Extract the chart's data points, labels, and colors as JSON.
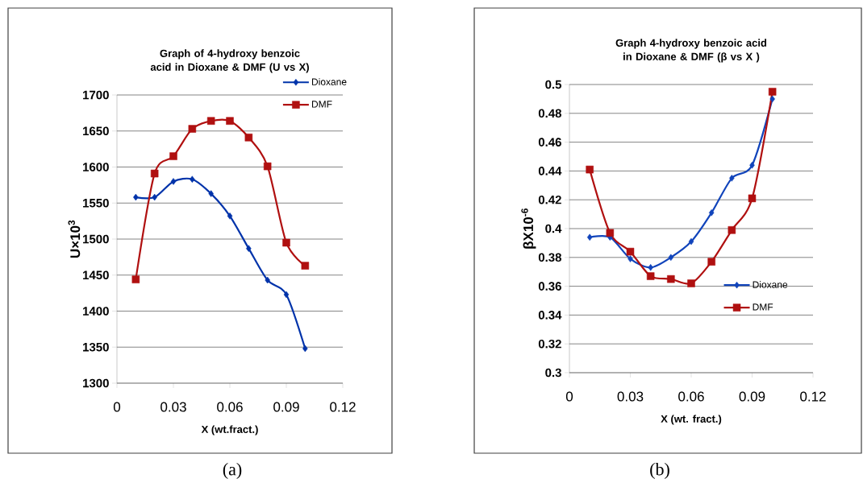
{
  "chart_data": [
    {
      "type": "line",
      "title": "Graph of 4-hydroxy benzoic acid in Dioxane & DMF (U vs X)",
      "xlabel": "X (wt.fract.)",
      "ylabel": "U×10$^{3}$",
      "x": [
        0.01,
        0.02,
        0.03,
        0.04,
        0.05,
        0.06,
        0.07,
        0.08,
        0.09,
        0.1
      ],
      "series": [
        {
          "name": "Dioxane",
          "color": "#0033aa",
          "marker": "diamond",
          "values": [
            1558,
            1558,
            1580,
            1583,
            1563,
            1532,
            1487,
            1443,
            1423,
            1348
          ]
        },
        {
          "name": "DMF",
          "color": "#b01010",
          "marker": "square",
          "values": [
            1444,
            1591,
            1615,
            1653,
            1664,
            1664,
            1641,
            1601,
            1495,
            1463
          ]
        }
      ],
      "xlim": [
        0,
        0.12
      ],
      "xticks": [
        0,
        0.03,
        0.06,
        0.09,
        0.12
      ],
      "ylim": [
        1300,
        1700
      ],
      "yticks": [
        1300,
        1350,
        1400,
        1450,
        1500,
        1550,
        1600,
        1650,
        1700
      ],
      "grid": "y",
      "legend": "top right",
      "annotations": [
        "(a)"
      ]
    },
    {
      "type": "line",
      "title": "Graph 4-hydroxy benzoic acid in Dioxane & DMF (β vs X )",
      "xlabel": "X (wt. fract.)",
      "ylabel": "βX10$^{-6}$",
      "x": [
        0.01,
        0.02,
        0.03,
        0.04,
        0.05,
        0.06,
        0.07,
        0.08,
        0.09,
        0.1
      ],
      "series": [
        {
          "name": "Dioxane",
          "color": "#1144bb",
          "marker": "diamond",
          "values": [
            0.394,
            0.394,
            0.379,
            0.373,
            0.38,
            0.391,
            0.411,
            0.435,
            0.444,
            0.49
          ]
        },
        {
          "name": "DMF",
          "color": "#b01010",
          "marker": "square",
          "values": [
            0.441,
            0.397,
            0.384,
            0.367,
            0.365,
            0.362,
            0.377,
            0.399,
            0.421,
            0.495
          ]
        }
      ],
      "xlim": [
        0,
        0.12
      ],
      "xticks": [
        0,
        0.03,
        0.06,
        0.09,
        0.12
      ],
      "ylim": [
        0.3,
        0.5
      ],
      "yticks": [
        0.3,
        0.32,
        0.34,
        0.36,
        0.38,
        0.4,
        0.42,
        0.44,
        0.46,
        0.48,
        0.5
      ],
      "grid": "y",
      "legend": "bottom right",
      "annotations": [
        "(b)"
      ]
    }
  ]
}
